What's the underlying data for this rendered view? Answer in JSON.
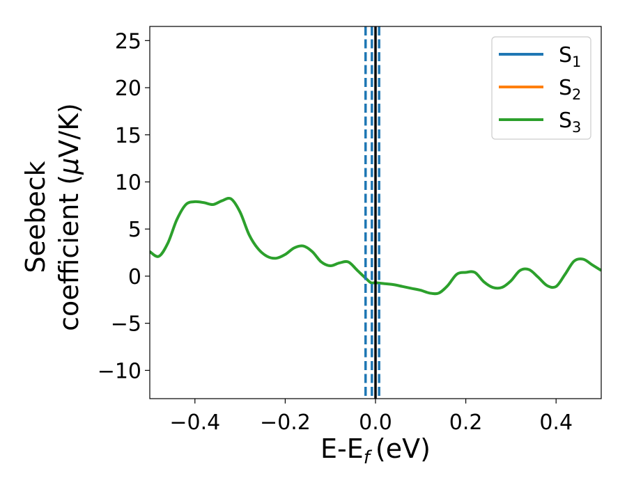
{
  "chart_data": {
    "type": "line",
    "xlabel": "E-E",
    "xlabel_sub": "f",
    "xlabel_unit": "(eV)",
    "ylabel_line1": "Seebeck",
    "ylabel_line2": "coefficient  (",
    "ylabel_mu": "μ",
    "ylabel_unit": "V/K)",
    "xlim": [
      -0.5,
      0.5
    ],
    "ylim": [
      -13,
      26.5
    ],
    "x_ticks": [
      -0.4,
      -0.2,
      0.0,
      0.2,
      0.4
    ],
    "x_tick_labels": [
      "−0.4",
      "−0.2",
      "0.0",
      "0.2",
      "0.4"
    ],
    "y_ticks": [
      -10,
      -5,
      0,
      5,
      10,
      15,
      20,
      25
    ],
    "y_tick_labels": [
      "−10",
      "−5",
      "0",
      "5",
      "10",
      "15",
      "20",
      "25"
    ],
    "grid": false,
    "legend_position": "top-right",
    "series": [
      {
        "name": "S",
        "name_sub": "1",
        "color": "#1f77b4",
        "hidden_under": "S3"
      },
      {
        "name": "S",
        "name_sub": "2",
        "color": "#ff7f0e",
        "hidden_under": "S3"
      },
      {
        "name": "S",
        "name_sub": "3",
        "color": "#2ca02c",
        "x": [
          -0.5,
          -0.48,
          -0.46,
          -0.44,
          -0.42,
          -0.4,
          -0.38,
          -0.36,
          -0.34,
          -0.32,
          -0.3,
          -0.28,
          -0.26,
          -0.24,
          -0.22,
          -0.2,
          -0.18,
          -0.16,
          -0.14,
          -0.12,
          -0.1,
          -0.08,
          -0.06,
          -0.04,
          -0.02,
          -0.01,
          0.0,
          0.02,
          0.04,
          0.06,
          0.08,
          0.1,
          0.12,
          0.14,
          0.16,
          0.18,
          0.2,
          0.22,
          0.24,
          0.26,
          0.28,
          0.3,
          0.32,
          0.34,
          0.36,
          0.38,
          0.4,
          0.42,
          0.44,
          0.46,
          0.48,
          0.5
        ],
        "y": [
          2.6,
          2.1,
          3.5,
          6.0,
          7.6,
          7.9,
          7.8,
          7.6,
          8.0,
          8.2,
          6.8,
          4.4,
          2.9,
          2.1,
          1.9,
          2.3,
          3.0,
          3.2,
          2.6,
          1.5,
          1.1,
          1.4,
          1.5,
          0.6,
          -0.3,
          -0.7,
          -0.7,
          -0.8,
          -0.9,
          -1.1,
          -1.3,
          -1.5,
          -1.8,
          -1.8,
          -1.0,
          0.2,
          0.4,
          0.4,
          -0.6,
          -1.2,
          -1.2,
          -0.5,
          0.6,
          0.7,
          -0.1,
          -1.0,
          -1.1,
          0.2,
          1.6,
          1.8,
          1.2,
          0.6
        ]
      }
    ],
    "vlines": [
      {
        "x": -0.022,
        "style": "dashed",
        "color": "#1f77b4"
      },
      {
        "x": -0.008,
        "style": "dashed",
        "color": "#1f77b4"
      },
      {
        "x": 0.008,
        "style": "dashed",
        "color": "#1f77b4"
      },
      {
        "x": 0.0,
        "style": "solid",
        "color": "#000000"
      }
    ]
  }
}
